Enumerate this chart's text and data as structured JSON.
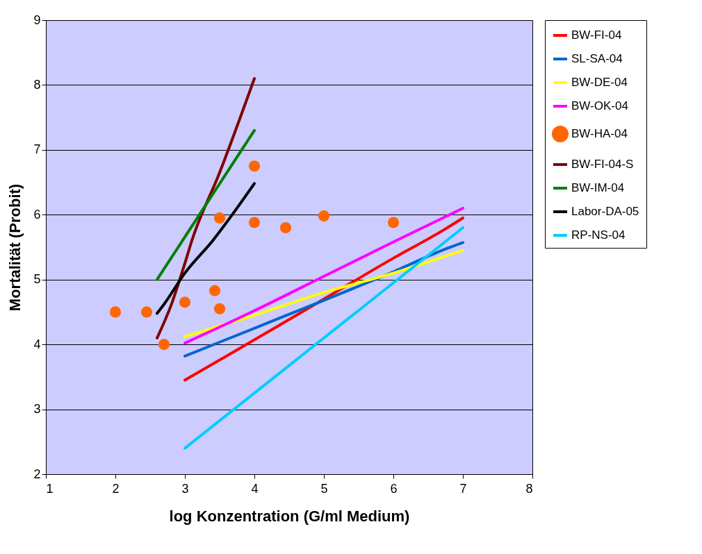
{
  "chart_data": {
    "type": "line",
    "xlabel": "log Konzentration (G/ml Medium)",
    "ylabel": "Mortalität (Probit)",
    "xlim": [
      1,
      8
    ],
    "xticks": [
      1,
      2,
      3,
      4,
      5,
      6,
      7,
      8
    ],
    "ylim": [
      2,
      9
    ],
    "yticks": [
      2,
      3,
      4,
      5,
      6,
      7,
      8,
      9
    ],
    "grid": "y",
    "legend": "right",
    "line_style": "solid",
    "series": [
      {
        "name": "BW-FI-04",
        "color": "#ff0000",
        "marker": "none",
        "x": [
          3,
          4,
          5,
          6,
          6.7,
          7
        ],
        "values": [
          3.45,
          4.07,
          4.7,
          5.33,
          5.75,
          5.95
        ]
      },
      {
        "name": "SL-SA-04",
        "color": "#0066cc",
        "marker": "none",
        "x": [
          3,
          4,
          5,
          6,
          6.7,
          7
        ],
        "values": [
          3.82,
          4.25,
          4.68,
          5.12,
          5.45,
          5.57
        ]
      },
      {
        "name": "BW-DE-04",
        "color": "#ffff00",
        "marker": "none",
        "x": [
          3,
          4,
          5,
          6,
          7
        ],
        "values": [
          4.12,
          4.45,
          4.8,
          5.1,
          5.45
        ]
      },
      {
        "name": "BW-OK-04",
        "color": "#ff00ff",
        "marker": "none",
        "x": [
          3,
          4,
          5,
          6,
          7
        ],
        "values": [
          4.02,
          4.52,
          5.05,
          5.58,
          6.1
        ]
      },
      {
        "name": "BW-HA-04",
        "color": "#ff6600",
        "type": "scatter",
        "marker": "circle",
        "x": [
          2,
          2.45,
          2.7,
          3,
          3.43,
          3.5,
          3.5,
          4,
          4,
          4.45,
          5,
          6
        ],
        "values": [
          4.5,
          4.5,
          4.0,
          4.65,
          4.83,
          4.55,
          5.95,
          6.75,
          5.88,
          5.8,
          5.98,
          5.88
        ]
      },
      {
        "name": "BW-FI-04-S",
        "color": "#800000",
        "marker": "none",
        "x": [
          2.6,
          2.8,
          3,
          3.1,
          3.5,
          4
        ],
        "values": [
          4.1,
          4.6,
          5.25,
          5.6,
          6.65,
          8.1
        ]
      },
      {
        "name": "BW-IM-04",
        "color": "#008000",
        "marker": "none",
        "x": [
          2.6,
          4
        ],
        "values": [
          5.0,
          7.3
        ]
      },
      {
        "name": "Labor-DA-05",
        "color": "#000000",
        "marker": "none",
        "x": [
          2.6,
          2.7,
          3,
          3.4,
          4
        ],
        "values": [
          4.48,
          4.62,
          5.1,
          5.6,
          6.48
        ]
      },
      {
        "name": "RP-NS-04",
        "color": "#00ccff",
        "marker": "none",
        "x": [
          3,
          7
        ],
        "values": [
          2.4,
          5.8
        ]
      }
    ]
  }
}
